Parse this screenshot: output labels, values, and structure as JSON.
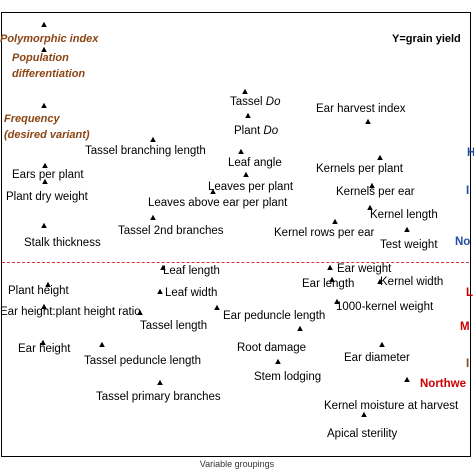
{
  "chart_data": {
    "type": "scatter",
    "title": "",
    "xlabel": "Variable groupings",
    "ylabel": "",
    "legend_note": "Y=grain yield",
    "categories_left": [
      {
        "text": "Polymorphic index",
        "lines": [
          "Polymorphic index"
        ]
      },
      {
        "text": "Population differentiation",
        "lines": [
          "Population",
          "differentiation"
        ]
      },
      {
        "text": "Frequency (desired variant)",
        "lines": [
          "Frequency",
          "(desired variant)"
        ]
      }
    ],
    "region_labels": [
      {
        "text": "H",
        "color": "#1f4fa3"
      },
      {
        "text": "No",
        "color": "#1f4fa3"
      },
      {
        "text": "L",
        "color": "#cc0000"
      },
      {
        "text": "M",
        "color": "#cc0000"
      },
      {
        "text": "Northwe",
        "color": "#cc0000"
      }
    ],
    "points": [
      {
        "label": "Tassel Do"
      },
      {
        "label": "Ear harvest index"
      },
      {
        "label": "Plant Do"
      },
      {
        "label": "Tassel branching length"
      },
      {
        "label": "Leaf angle"
      },
      {
        "label": "Kernels per plant"
      },
      {
        "label": "Ears per plant"
      },
      {
        "label": "Leaves per plant"
      },
      {
        "label": "Kernels per ear"
      },
      {
        "label": "Plant dry weight"
      },
      {
        "label": "Leaves above ear per plant"
      },
      {
        "label": "Kernel length"
      },
      {
        "label": "Tassel 2nd branches"
      },
      {
        "label": "Kernel rows per ear"
      },
      {
        "label": "Stalk thickness"
      },
      {
        "label": "Test weight"
      },
      {
        "label": "Leaf length"
      },
      {
        "label": "Ear weight"
      },
      {
        "label": "Plant height"
      },
      {
        "label": "Ear length"
      },
      {
        "label": "Kernel width"
      },
      {
        "label": "Leaf width"
      },
      {
        "label": "1000-kernel weight"
      },
      {
        "label": "Ear height:plant height ratio"
      },
      {
        "label": "Ear peduncle length"
      },
      {
        "label": "Tassel length"
      },
      {
        "label": "Ear height"
      },
      {
        "label": "Root damage"
      },
      {
        "label": "Tassel peduncle length"
      },
      {
        "label": "Ear diameter"
      },
      {
        "label": "Stem lodging"
      },
      {
        "label": "Tassel primary branches"
      },
      {
        "label": "Kernel moisture at harvest"
      },
      {
        "label": "Apical sterility"
      }
    ]
  }
}
